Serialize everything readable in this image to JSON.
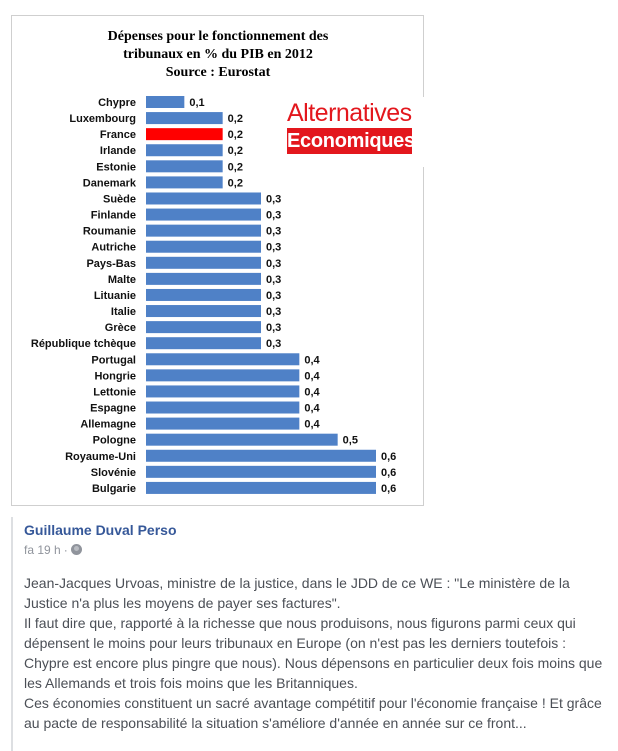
{
  "chart_data": {
    "type": "bar",
    "orientation": "horizontal",
    "title": [
      "Dépenses pour le fonctionnement des",
      "tribunaux en % du PIB en 2012",
      "Source : Eurostat"
    ],
    "categories": [
      "Chypre",
      "Luxembourg",
      "France",
      "Irlande",
      "Estonie",
      "Danemark",
      "Suède",
      "Finlande",
      "Roumanie",
      "Autriche",
      "Pays-Bas",
      "Malte",
      "Lituanie",
      "Italie",
      "Grèce",
      "République tchèque",
      "Portugal",
      "Hongrie",
      "Lettonie",
      "Espagne",
      "Allemagne",
      "Pologne",
      "Royaume-Uni",
      "Slovénie",
      "Bulgarie"
    ],
    "values": [
      0.1,
      0.2,
      0.2,
      0.2,
      0.2,
      0.2,
      0.3,
      0.3,
      0.3,
      0.3,
      0.3,
      0.3,
      0.3,
      0.3,
      0.3,
      0.3,
      0.4,
      0.4,
      0.4,
      0.4,
      0.4,
      0.5,
      0.6,
      0.6,
      0.6
    ],
    "value_labels": [
      "0,1",
      "0,2",
      "0,2",
      "0,2",
      "0,2",
      "0,2",
      "0,3",
      "0,3",
      "0,3",
      "0,3",
      "0,3",
      "0,3",
      "0,3",
      "0,3",
      "0,3",
      "0,3",
      "0,4",
      "0,4",
      "0,4",
      "0,4",
      "0,4",
      "0,5",
      "0,6",
      "0,6",
      "0,6"
    ],
    "highlight": "France",
    "xlim": [
      0,
      0.6
    ],
    "bar_color": "#4f81c7",
    "highlight_color": "#ff0000",
    "xlabel": "",
    "ylabel": ""
  },
  "logo": {
    "line1": "Alternatives",
    "line2": "Economiques",
    "color": "#e3171d"
  },
  "post": {
    "author": "Guillaume Duval Perso",
    "time": "fa 19 h",
    "separator": "·",
    "privacy_icon": "globe-icon",
    "paragraphs": [
      "Jean-Jacques Urvoas, ministre de la justice, dans le JDD de ce WE : \"Le ministère de la Justice n'a plus les moyens de payer ses factures\".",
      "Il faut dire que, rapporté à la richesse que nous produisons, nous figurons parmi ceux qui dépensent le moins pour leurs tribunaux en Europe (on n'est pas les derniers toutefois : Chypre est encore plus pingre que nous). Nous dépensons en particulier deux fois moins que les Allemands et trois fois moins que les Britanniques.",
      "Ces économies constituent un sacré avantage compétitif pour l'économie française ! Et grâce au pacte de responsabilité la situation s'améliore d'année en année sur ce front..."
    ],
    "author_color": "#365899",
    "text_color": "#4b4f56"
  }
}
